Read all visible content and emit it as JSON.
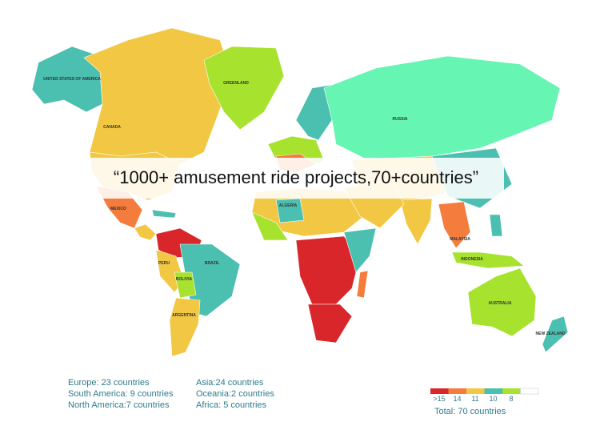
{
  "banner": "“1000+ amusement ride projects,70+countries”",
  "map_labels": [
    "UNITED STATES OF AMERICA",
    "CANADA",
    "GREENLAND",
    "RUSSIA",
    "MEXICO",
    "ALGERIA",
    "PERU",
    "BRAZIL",
    "BOLIVIA",
    "ARGENTINA",
    "MALAYSIA",
    "INDONESIA",
    "AUSTRALIA",
    "NEW ZEALAND"
  ],
  "stats": [
    "Europe: 23 countries",
    "Asia:24 countries",
    "South America: 9 countries",
    "Oceania:2 countries",
    "North America:7 countries",
    "Africa: 5 countries"
  ],
  "legend": [
    {
      "label": ">15",
      "color": "#d9262b"
    },
    {
      "label": "14",
      "color": "#f47c3c"
    },
    {
      "label": "11",
      "color": "#f2c744"
    },
    {
      "label": "10",
      "color": "#4bbfb0"
    },
    {
      "label": "8",
      "color": "#a6e22e"
    }
  ],
  "total": "Total: 70 countries"
}
